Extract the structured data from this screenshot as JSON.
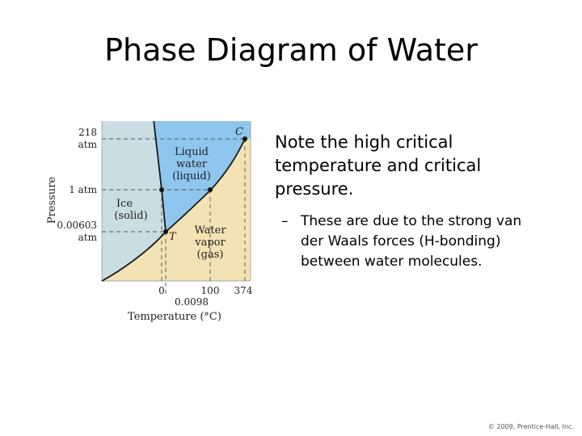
{
  "slide": {
    "title": "Phase Diagram of Water",
    "bullet_main": "Note the high critical temperature and critical pressure.",
    "bullet_dash": "–",
    "bullet_sub": "These are due to the strong van der Waals forces (H-bonding) between water molecules.",
    "copyright": "© 2009, Prentice-Hall, Inc."
  },
  "diagram": {
    "y_axis_label": "Pressure",
    "x_axis_label": "Temperature (°C)",
    "y_ticks": [
      {
        "line1": "218",
        "line2": "atm"
      },
      {
        "line1": "1 atm",
        "line2": ""
      },
      {
        "line1": "0.00603",
        "line2": "atm"
      }
    ],
    "x_ticks": [
      "0",
      "100",
      "374"
    ],
    "x_tick_extra": "0.0098",
    "regions": {
      "liquid": [
        "Liquid",
        "water",
        "(liquid)"
      ],
      "ice": [
        "Ice",
        "(solid)"
      ],
      "vapor": [
        "Water",
        "vapor",
        "(gas)"
      ]
    },
    "points": {
      "critical_label": "C",
      "triple_label": "T"
    },
    "colors": {
      "solid": "#c9dde3",
      "liquid": "#8fc6ee",
      "gas": "#f3e2b3",
      "curve": "#1a1a1a"
    }
  }
}
